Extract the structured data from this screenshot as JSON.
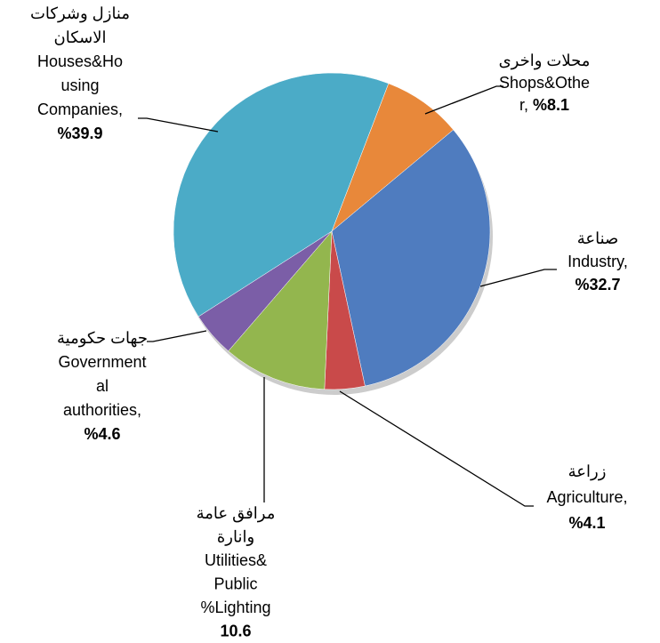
{
  "chart_data": {
    "type": "pie",
    "categories": [
      [
        "محلات واخرى",
        "Shops&Othe",
        "r, "
      ],
      [
        "صناعة",
        "Industry,"
      ],
      [
        "زراعة",
        "Agriculture,"
      ],
      [
        "مرافق عامة",
        "وانارة",
        "Utilities&",
        "Public",
        "%Lighting"
      ],
      [
        "جهات حكومية",
        "Government",
        "al",
        "authorities,"
      ],
      [
        "منازل وشركات",
        "الاسكان",
        "Houses&Ho",
        "using",
        "Companies,"
      ]
    ],
    "values": [
      8.1,
      32.7,
      4.1,
      10.6,
      4.6,
      39.9
    ],
    "value_labels": [
      "%8.1",
      "%32.7",
      "%4.1",
      "10.6",
      "%4.6",
      "%39.9"
    ],
    "colors": [
      "#e8883a",
      "#4f7cbf",
      "#c94a4a",
      "#93b64e",
      "#7b5ea7",
      "#4babc7"
    ]
  }
}
